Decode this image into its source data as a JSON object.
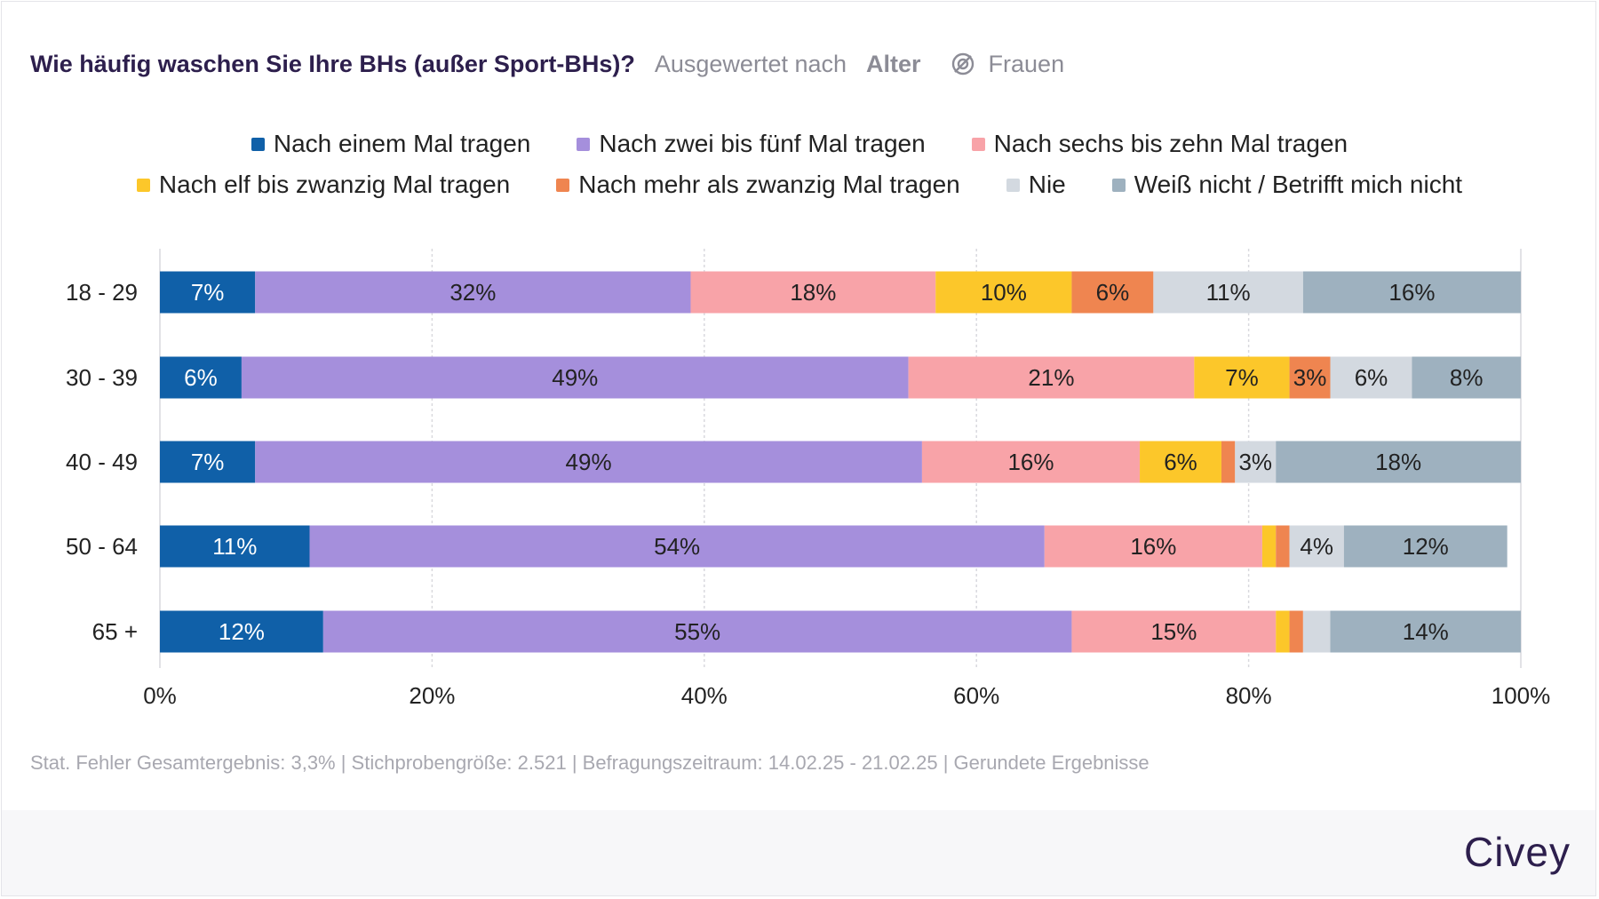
{
  "header": {
    "title": "Wie häufig waschen Sie Ihre BHs (außer Sport-BHs)?",
    "subtitle": "Ausgewertet nach",
    "filter": "Alter",
    "segment": "Frauen",
    "segment_icon": "segment-filter-icon"
  },
  "chart_data": {
    "type": "bar",
    "orientation": "horizontal",
    "stacked": true,
    "categories": [
      "18 - 29",
      "30 - 39",
      "40 - 49",
      "50 - 64",
      "65 +"
    ],
    "series": [
      {
        "name": "Nach einem Mal tragen",
        "color": "#1060a8",
        "values": [
          7,
          6,
          7,
          11,
          12
        ]
      },
      {
        "name": "Nach zwei bis fünf Mal tragen",
        "color": "#a58fdc",
        "values": [
          32,
          49,
          49,
          54,
          55
        ]
      },
      {
        "name": "Nach sechs bis zehn Mal tragen",
        "color": "#f8a3a8",
        "values": [
          18,
          21,
          16,
          16,
          15
        ]
      },
      {
        "name": "Nach elf bis zwanzig Mal tragen",
        "color": "#fcc72a",
        "values": [
          10,
          7,
          6,
          1,
          1
        ]
      },
      {
        "name": "Nach mehr als zwanzig Mal tragen",
        "color": "#ef8550",
        "values": [
          6,
          3,
          1,
          1,
          1
        ]
      },
      {
        "name": "Nie",
        "color": "#d3d9e0",
        "values": [
          11,
          6,
          3,
          4,
          2
        ]
      },
      {
        "name": "Weiß nicht / Betrifft mich nicht",
        "color": "#9eb1bf",
        "values": [
          16,
          8,
          18,
          12,
          14
        ]
      }
    ],
    "data_labels": [
      [
        "7%",
        "32%",
        "18%",
        "10%",
        "6%",
        "11%",
        "16%"
      ],
      [
        "6%",
        "49%",
        "21%",
        "7%",
        "3%",
        "6%",
        "8%"
      ],
      [
        "7%",
        "49%",
        "16%",
        "6%",
        "",
        "3%",
        "18%"
      ],
      [
        "11%",
        "54%",
        "16%",
        "",
        "",
        "4%",
        "12%"
      ],
      [
        "12%",
        "55%",
        "15%",
        "",
        "",
        "",
        "14%"
      ]
    ],
    "xlim": [
      0,
      100
    ],
    "x_ticks": [
      "0%",
      "20%",
      "40%",
      "60%",
      "80%",
      "100%"
    ],
    "grid": true,
    "legend_position": "top"
  },
  "footer": {
    "note": "Stat. Fehler Gesamtergebnis: 3,3% | Stichprobengröße: 2.521 | Befragungszeitraum: 14.02.25 - 21.02.25 | Gerundete Ergebnisse",
    "brand": "Civey"
  }
}
